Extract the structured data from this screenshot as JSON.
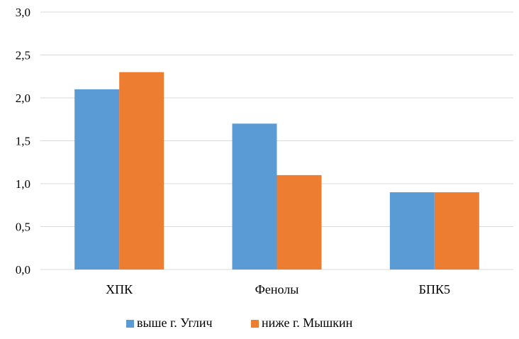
{
  "chart_data": {
    "type": "bar",
    "categories": [
      "ХПК",
      "Фенолы",
      "БПК5"
    ],
    "series": [
      {
        "name": "выше г. Углич",
        "values": [
          2.1,
          1.7,
          0.9
        ],
        "color": "#5b9bd5"
      },
      {
        "name": "ниже г. Мышкин",
        "values": [
          2.3,
          1.1,
          0.9
        ],
        "color": "#ed7d31"
      }
    ],
    "ylim": [
      0,
      3.0
    ],
    "yticks": [
      "0,0",
      "0,5",
      "1,0",
      "1,5",
      "2,0",
      "2,5",
      "3,0"
    ],
    "ytick_values": [
      0,
      0.5,
      1.0,
      1.5,
      2.0,
      2.5,
      3.0
    ],
    "grid": true,
    "legend_position": "bottom",
    "title": "",
    "xlabel": "",
    "ylabel": ""
  }
}
